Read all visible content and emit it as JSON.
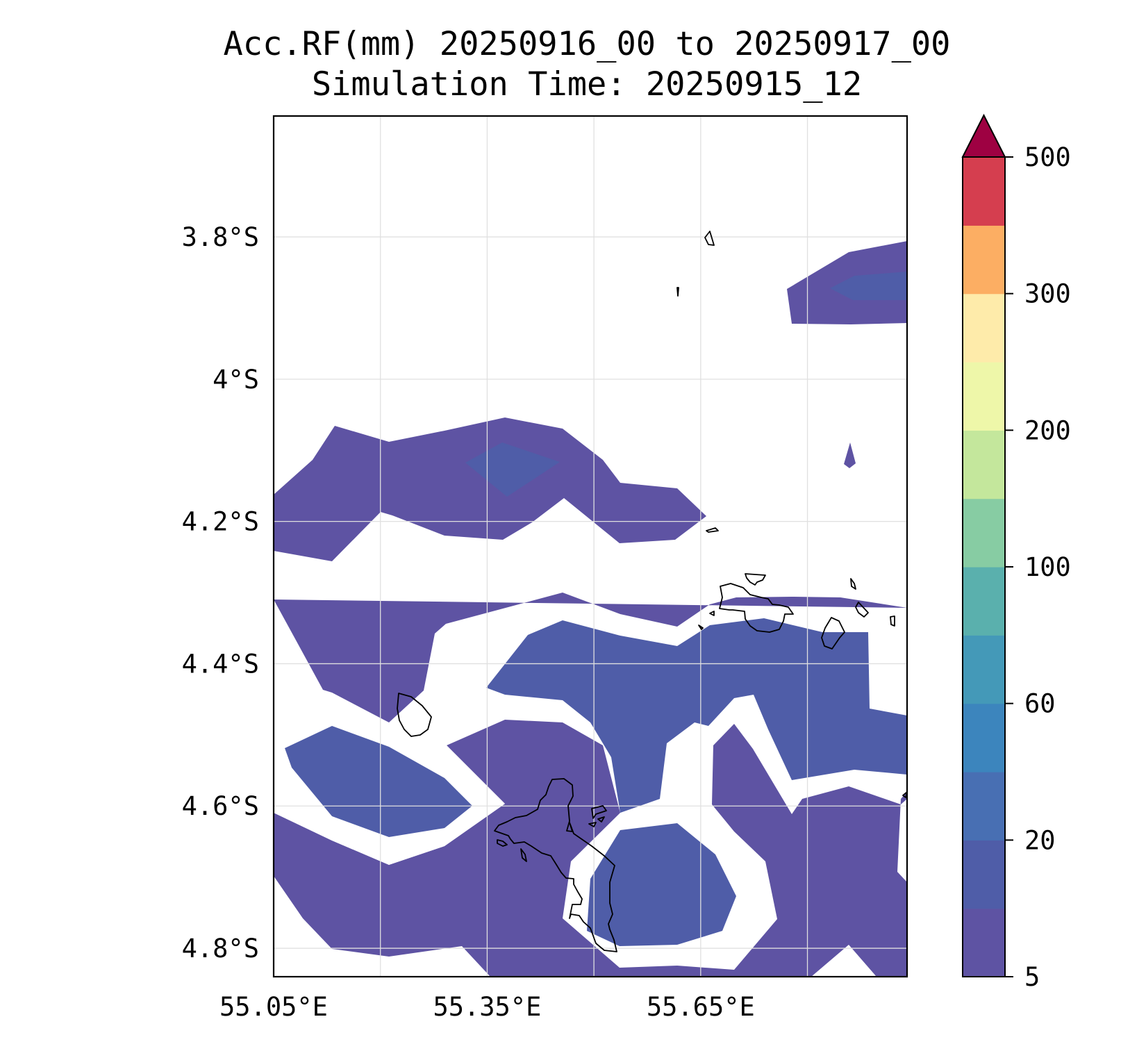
{
  "chart_data": {
    "type": "contour_map",
    "title": "Acc.RF(mm) 20250916_00 to 20250917_00",
    "subtitle": "Simulation Time: 20250915_12",
    "x_ticks": [
      "55.05°E",
      "55.35°E",
      "55.65°E"
    ],
    "y_ticks": [
      "3.8°S",
      "4°S",
      "4.2°S",
      "4.4°S",
      "4.6°S",
      "4.8°S"
    ],
    "xlim": [
      55.05,
      55.94
    ],
    "ylim": [
      -4.84,
      -3.63
    ],
    "x_tick_values": [
      55.05,
      55.35,
      55.65
    ],
    "y_tick_values": [
      -3.8,
      -4.0,
      -4.2,
      -4.4,
      -4.6,
      -4.8
    ],
    "grid": true,
    "colorbar": {
      "levels": [
        5,
        10,
        20,
        40,
        60,
        80,
        100,
        150,
        200,
        250,
        300,
        400,
        500
      ],
      "tick_labels": [
        "5",
        "20",
        "60",
        "100",
        "200",
        "300",
        "500"
      ],
      "tick_levels": [
        5,
        20,
        60,
        100,
        200,
        300,
        500
      ],
      "colors": [
        "#5e53a3",
        "#4f5da8",
        "#486fb3",
        "#3c85bd",
        "#4499b8",
        "#5ab0ad",
        "#87cca3",
        "#c4e79c",
        "#eef7a9",
        "#feebaa",
        "#fcae63",
        "#d53e4f"
      ],
      "extend_max_color": "#9e0142"
    },
    "regions": [
      {
        "level_min": 5,
        "level_max": 10,
        "color": "#5e53a3",
        "area": "north-band"
      },
      {
        "level_min": 5,
        "level_max": 10,
        "color": "#5e53a3",
        "area": "central-band"
      },
      {
        "level_min": 5,
        "level_max": 10,
        "color": "#5e53a3",
        "area": "southern-bands"
      },
      {
        "level_min": 10,
        "level_max": 20,
        "color": "#4f5da8",
        "area": "embedded-cores"
      }
    ],
    "coastline_color": "#000000"
  }
}
